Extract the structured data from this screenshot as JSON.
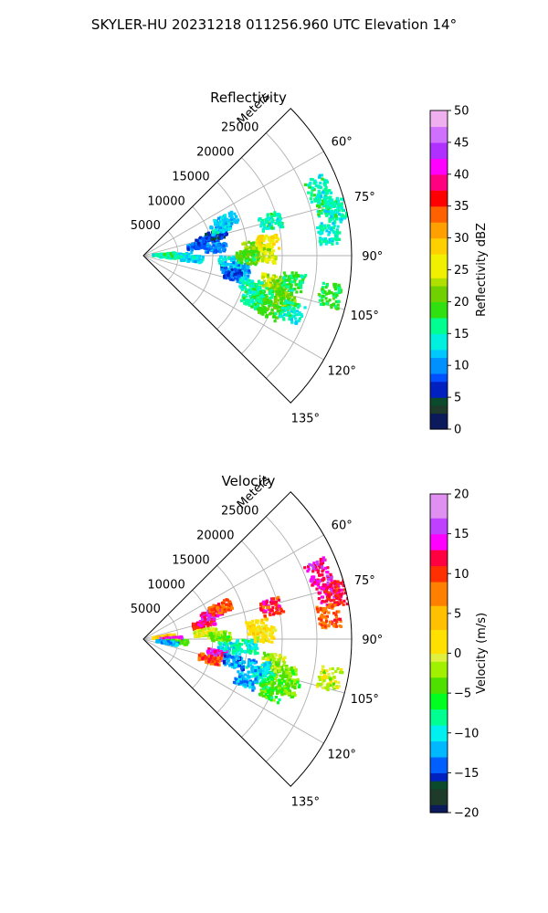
{
  "suptitle": "SKYLER-HU  20231218  011256.960 UTC Elevation 14°",
  "chart_data": [
    {
      "type": "heatmap",
      "projection": "polar-sector",
      "title": "Reflectivity",
      "range_label": "Meters",
      "range_ticks": [
        5000,
        10000,
        15000,
        20000,
        25000
      ],
      "range_max": 30000,
      "azimuth_range": [
        45,
        135
      ],
      "azimuth_ticks": [
        "60°",
        "75°",
        "90°",
        "105°",
        "120°",
        "135°"
      ],
      "azimuth_tick_values": [
        60,
        75,
        90,
        105,
        120,
        135
      ],
      "grid": true,
      "colorbar": {
        "label": "Reflectivity dBZ",
        "min": 0,
        "max": 50,
        "ticks": [
          "0",
          "5",
          "10",
          "15",
          "20",
          "25",
          "30",
          "35",
          "40",
          "45",
          "50"
        ],
        "tick_values": [
          0,
          5,
          10,
          15,
          20,
          25,
          30,
          35,
          40,
          45,
          50
        ],
        "colors": [
          {
            "v": 0,
            "c": "#0a1a5a"
          },
          {
            "v": 2,
            "c": "#1d3a2a"
          },
          {
            "v": 4,
            "c": "#0b4a2a"
          },
          {
            "v": 5,
            "c": "#0020c0"
          },
          {
            "v": 7,
            "c": "#0050ff"
          },
          {
            "v": 9,
            "c": "#0090ff"
          },
          {
            "v": 11,
            "c": "#00c8ff"
          },
          {
            "v": 13,
            "c": "#00f0e0"
          },
          {
            "v": 15,
            "c": "#00ff90"
          },
          {
            "v": 17,
            "c": "#30e010"
          },
          {
            "v": 20,
            "c": "#70d000"
          },
          {
            "v": 22,
            "c": "#b0e000"
          },
          {
            "v": 24,
            "c": "#f0f000"
          },
          {
            "v": 27,
            "c": "#ffd000"
          },
          {
            "v": 30,
            "c": "#ffa000"
          },
          {
            "v": 33,
            "c": "#ff6000"
          },
          {
            "v": 35,
            "c": "#ff0000"
          },
          {
            "v": 38,
            "c": "#ff0080"
          },
          {
            "v": 40,
            "c": "#ff00ff"
          },
          {
            "v": 43,
            "c": "#b030ff"
          },
          {
            "v": 45,
            "c": "#d070ff"
          },
          {
            "v": 48,
            "c": "#f0b0f0"
          },
          {
            "v": 50,
            "c": "#fff0ff"
          }
        ]
      },
      "cells": [
        {
          "r": 4000,
          "az": 92,
          "v": 15
        },
        {
          "r": 5500,
          "az": 90,
          "v": 14
        },
        {
          "r": 7000,
          "az": 94,
          "v": 13
        },
        {
          "r": 3000,
          "az": 88,
          "v": 15
        },
        {
          "r": 8000,
          "az": 80,
          "v": 9
        },
        {
          "r": 9500,
          "az": 76,
          "v": 8
        },
        {
          "r": 11000,
          "az": 74,
          "v": 6
        },
        {
          "r": 10500,
          "az": 84,
          "v": 10
        },
        {
          "r": 12000,
          "az": 70,
          "v": 13
        },
        {
          "r": 13000,
          "az": 67,
          "v": 12
        },
        {
          "r": 12500,
          "az": 94,
          "v": 13
        },
        {
          "r": 14000,
          "az": 98,
          "v": 11
        },
        {
          "r": 13000,
          "az": 102,
          "v": 8
        },
        {
          "r": 16000,
          "az": 86,
          "v": 22
        },
        {
          "r": 18000,
          "az": 84,
          "v": 27
        },
        {
          "r": 17500,
          "az": 90,
          "v": 24
        },
        {
          "r": 15000,
          "az": 91,
          "v": 19
        },
        {
          "r": 19000,
          "az": 102,
          "v": 23
        },
        {
          "r": 20500,
          "az": 104,
          "v": 20
        },
        {
          "r": 18000,
          "az": 108,
          "v": 18
        },
        {
          "r": 22000,
          "az": 100,
          "v": 17
        },
        {
          "r": 17000,
          "az": 112,
          "v": 16
        },
        {
          "r": 20000,
          "az": 113,
          "v": 19
        },
        {
          "r": 21500,
          "az": 108,
          "v": 21
        },
        {
          "r": 16000,
          "az": 106,
          "v": 15
        },
        {
          "r": 23000,
          "az": 111,
          "v": 15
        },
        {
          "r": 19000,
          "az": 75,
          "v": 15
        },
        {
          "r": 27500,
          "az": 75,
          "v": 16
        },
        {
          "r": 28500,
          "az": 77,
          "v": 15
        },
        {
          "r": 27000,
          "az": 83,
          "v": 14
        },
        {
          "r": 27000,
          "az": 69,
          "v": 15
        },
        {
          "r": 27500,
          "az": 102,
          "v": 18
        }
      ]
    },
    {
      "type": "heatmap",
      "projection": "polar-sector",
      "title": "Velocity",
      "range_label": "Meters",
      "range_ticks": [
        5000,
        10000,
        15000,
        20000,
        25000
      ],
      "range_max": 30000,
      "azimuth_range": [
        45,
        135
      ],
      "azimuth_ticks": [
        "60°",
        "75°",
        "90°",
        "105°",
        "120°",
        "135°"
      ],
      "azimuth_tick_values": [
        60,
        75,
        90,
        105,
        120,
        135
      ],
      "grid": true,
      "colorbar": {
        "label": "Velocity (m/s)",
        "min": -20,
        "max": 20,
        "ticks": [
          "−20",
          "−15",
          "−10",
          "−5",
          "0",
          "5",
          "10",
          "15",
          "20"
        ],
        "tick_values": [
          -20,
          -15,
          -10,
          -5,
          0,
          5,
          10,
          15,
          20
        ],
        "colors": [
          {
            "v": -20,
            "c": "#0a1a5a"
          },
          {
            "v": -18.5,
            "c": "#1d3a2a"
          },
          {
            "v": -17,
            "c": "#0b4a2a"
          },
          {
            "v": -16,
            "c": "#0020c0"
          },
          {
            "v": -14.5,
            "c": "#0060ff"
          },
          {
            "v": -13,
            "c": "#00b8ff"
          },
          {
            "v": -11,
            "c": "#00f0f0"
          },
          {
            "v": -9,
            "c": "#00ff90"
          },
          {
            "v": -7,
            "c": "#00ff20"
          },
          {
            "v": -5,
            "c": "#50e000"
          },
          {
            "v": -3,
            "c": "#a0f000"
          },
          {
            "v": -1,
            "c": "#e0f040"
          },
          {
            "v": 0,
            "c": "#ffe000"
          },
          {
            "v": 3,
            "c": "#ffc000"
          },
          {
            "v": 6,
            "c": "#ff8000"
          },
          {
            "v": 9,
            "c": "#ff3000"
          },
          {
            "v": 11,
            "c": "#ff0040"
          },
          {
            "v": 13,
            "c": "#ff00ff"
          },
          {
            "v": 15,
            "c": "#c040ff"
          },
          {
            "v": 17,
            "c": "#e090f0"
          },
          {
            "v": 20,
            "c": "#fff0ff"
          }
        ]
      },
      "cells": [
        {
          "r": 3000,
          "az": 84,
          "v": 4
        },
        {
          "r": 4000,
          "az": 90,
          "v": 14
        },
        {
          "r": 5000,
          "az": 95,
          "v": -4
        },
        {
          "r": 3500,
          "az": 98,
          "v": -12
        },
        {
          "r": 9000,
          "az": 76,
          "v": 12
        },
        {
          "r": 10500,
          "az": 70,
          "v": 14
        },
        {
          "r": 12000,
          "az": 68,
          "v": 9
        },
        {
          "r": 9000,
          "az": 84,
          "v": 0
        },
        {
          "r": 11000,
          "az": 88,
          "v": -3
        },
        {
          "r": 12500,
          "az": 96,
          "v": -10
        },
        {
          "r": 11000,
          "az": 102,
          "v": 14
        },
        {
          "r": 10000,
          "az": 107,
          "v": 9
        },
        {
          "r": 13500,
          "az": 104,
          "v": -13
        },
        {
          "r": 15000,
          "az": 94,
          "v": -9
        },
        {
          "r": 17500,
          "az": 88,
          "v": 1
        },
        {
          "r": 16500,
          "az": 84,
          "v": 2
        },
        {
          "r": 19000,
          "az": 100,
          "v": -2
        },
        {
          "r": 21000,
          "az": 104,
          "v": -3
        },
        {
          "r": 18000,
          "az": 108,
          "v": -8
        },
        {
          "r": 20000,
          "az": 112,
          "v": -5
        },
        {
          "r": 16000,
          "az": 112,
          "v": -12
        },
        {
          "r": 22000,
          "az": 108,
          "v": -4
        },
        {
          "r": 17000,
          "az": 104,
          "v": -11
        },
        {
          "r": 19000,
          "az": 76,
          "v": 11
        },
        {
          "r": 27500,
          "az": 75,
          "v": 13
        },
        {
          "r": 28500,
          "az": 77,
          "v": 11
        },
        {
          "r": 27000,
          "az": 83,
          "v": 9
        },
        {
          "r": 27000,
          "az": 69,
          "v": 14
        },
        {
          "r": 27500,
          "az": 102,
          "v": -1
        }
      ]
    }
  ]
}
